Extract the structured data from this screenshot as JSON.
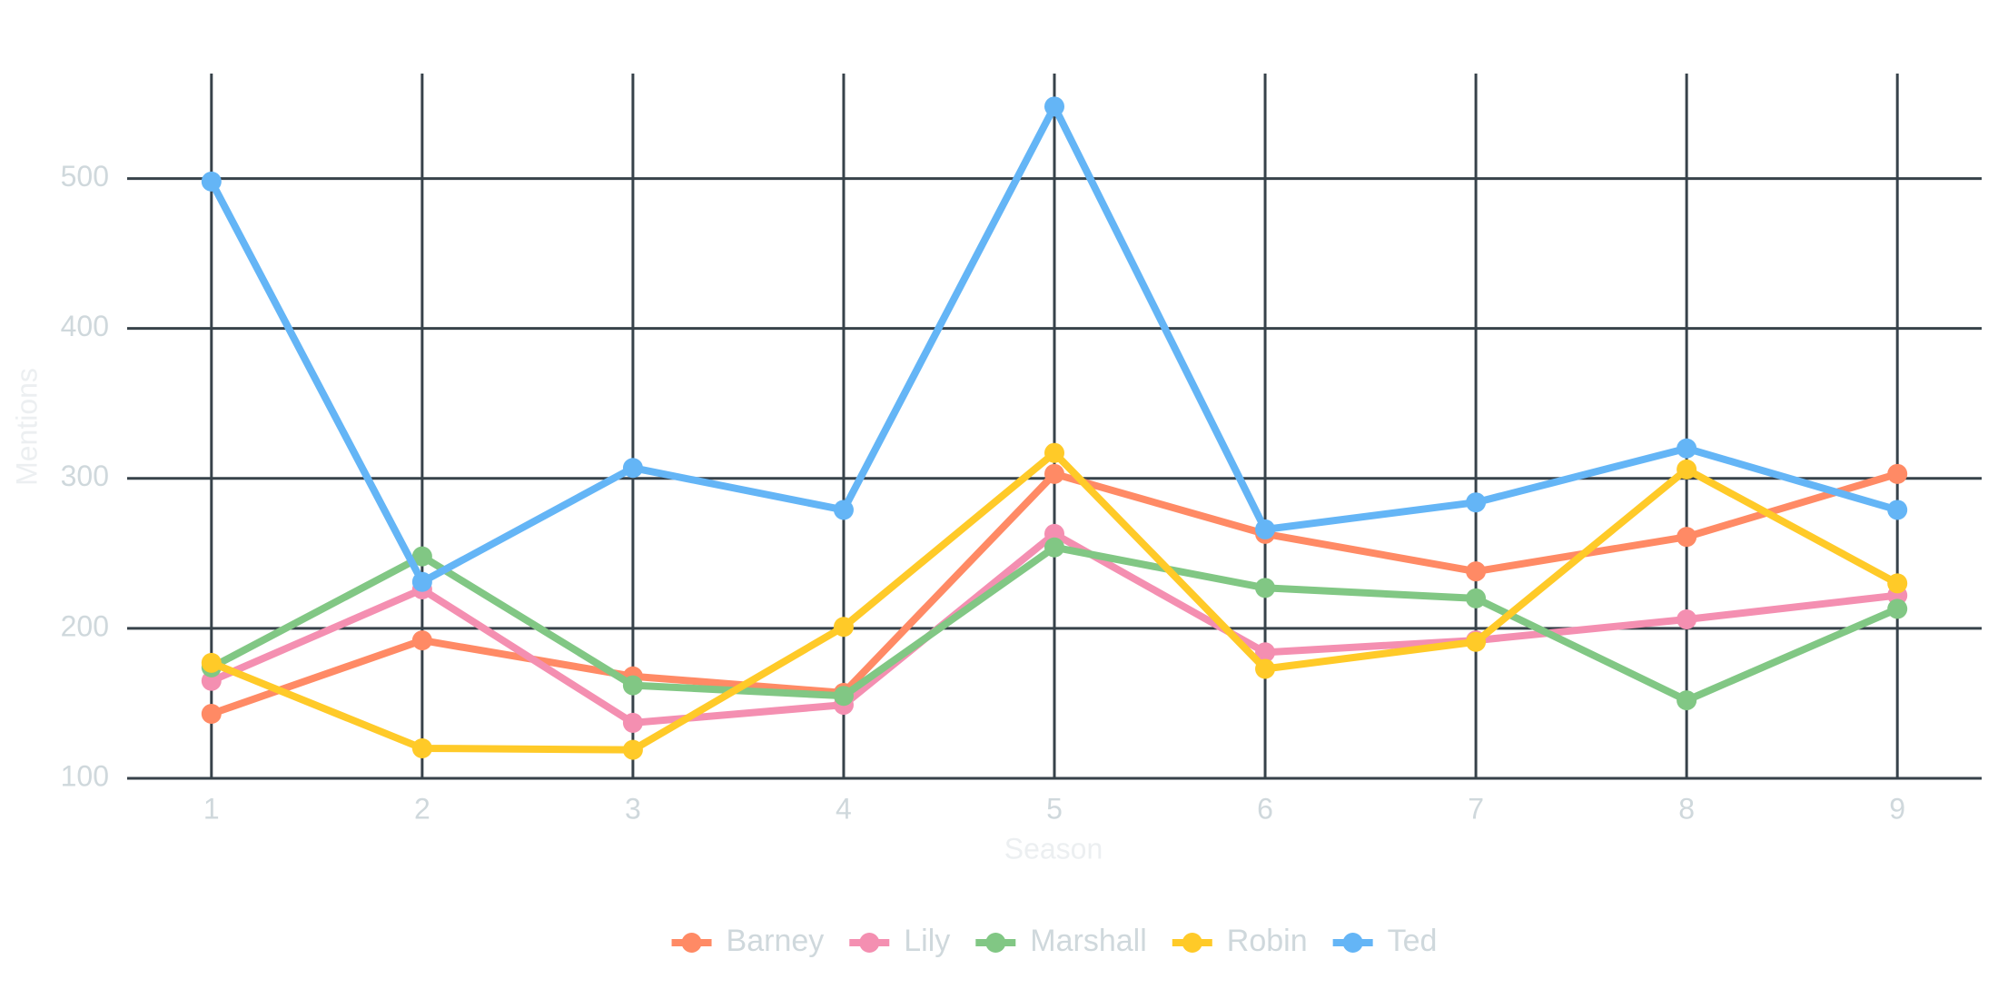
{
  "chart_data": {
    "type": "line",
    "x_label": "Season",
    "y_label": "Mentions",
    "x": [
      1,
      2,
      3,
      4,
      5,
      6,
      7,
      8,
      9
    ],
    "series": [
      {
        "name": "Barney",
        "color": "#ff8a65",
        "values": [
          143,
          192,
          168,
          157,
          303,
          263,
          238,
          261,
          303
        ]
      },
      {
        "name": "Lily",
        "color": "#f48fb1",
        "values": [
          165,
          226,
          137,
          149,
          263,
          184,
          192,
          206,
          222
        ]
      },
      {
        "name": "Marshall",
        "color": "#81c784",
        "values": [
          174,
          248,
          162,
          155,
          254,
          227,
          220,
          152,
          213
        ]
      },
      {
        "name": "Robin",
        "color": "#ffca28",
        "values": [
          177,
          120,
          119,
          201,
          317,
          173,
          191,
          306,
          230
        ]
      },
      {
        "name": "Ted",
        "color": "#64b5f6",
        "values": [
          498,
          231,
          307,
          279,
          548,
          266,
          284,
          320,
          279
        ]
      }
    ],
    "xlim": [
      0.6,
      9.4
    ],
    "ylim": [
      100,
      570
    ],
    "xticks": [
      1,
      2,
      3,
      4,
      5,
      6,
      7,
      8,
      9
    ],
    "yticks": [
      100,
      200,
      300,
      400,
      500
    ],
    "grid": true,
    "legend": "bottom"
  }
}
